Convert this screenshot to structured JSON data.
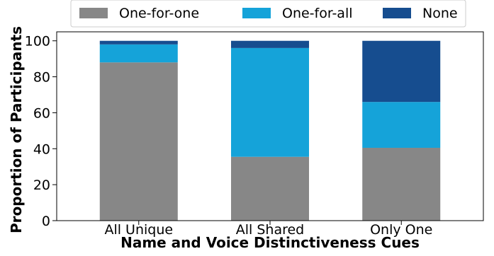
{
  "chart_data": {
    "type": "bar",
    "stacked": true,
    "categories": [
      "All Unique",
      "All Shared",
      "Only One"
    ],
    "series": [
      {
        "name": "One-for-one",
        "color": "#878787",
        "values": [
          88,
          35.5,
          40.5
        ]
      },
      {
        "name": "One-for-all",
        "color": "#15a3d9",
        "values": [
          10,
          60.5,
          25.5
        ]
      },
      {
        "name": "None",
        "color": "#164d8f",
        "values": [
          2,
          4,
          34
        ]
      }
    ],
    "xlabel": "Name and Voice Distinctiveness Cues",
    "ylabel": "Proportion of Participants",
    "ylim": [
      0,
      105
    ],
    "yticks": [
      0,
      20,
      40,
      60,
      80,
      100
    ],
    "grid": false,
    "legend_position": "top-center"
  }
}
